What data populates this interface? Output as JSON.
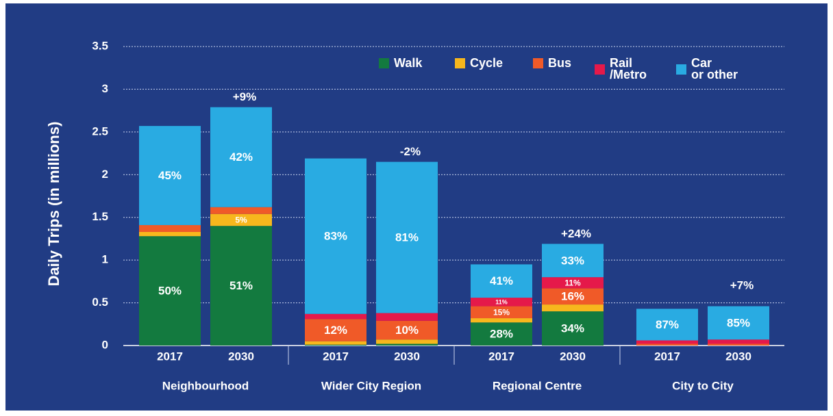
{
  "chart_data": {
    "type": "stacked_bar",
    "y_label": "Daily Trips (in millions)",
    "groups": [
      "Neighbourhood",
      "Wider City Region",
      "Regional Centre",
      "City to City"
    ],
    "categories": [
      "2017",
      "2030",
      "2017",
      "2030",
      "2017",
      "2030",
      "2017",
      "2030"
    ],
    "ylim": [
      0,
      3.5
    ],
    "yticks": [
      0,
      0.5,
      1,
      1.5,
      2,
      2.5,
      3,
      3.5
    ],
    "grid": true,
    "legend": "top-right",
    "series": [
      {
        "name": "Walk",
        "color": "#137a3f",
        "values": [
          1.28,
          1.4,
          0.01,
          0.02,
          0.27,
          0.4,
          0,
          0
        ],
        "share_labels": [
          "50%",
          "51%",
          null,
          null,
          "28%",
          "34%",
          null,
          null
        ]
      },
      {
        "name": "Cycle",
        "color": "#f7b71d",
        "values": [
          0.05,
          0.14,
          0.04,
          0.05,
          0.05,
          0.08,
          0,
          0
        ],
        "share_labels": [
          null,
          "5%",
          null,
          null,
          null,
          null,
          null,
          null
        ]
      },
      {
        "name": "Bus",
        "color": "#f05a28",
        "values": [
          0.08,
          0.08,
          0.26,
          0.22,
          0.14,
          0.19,
          0.02,
          0.02
        ],
        "share_labels": [
          null,
          null,
          "12%",
          "10%",
          "15%",
          "16%",
          null,
          null
        ]
      },
      {
        "name": "Rail\n/Metro",
        "color": "#e5194a",
        "values": [
          0,
          0,
          0.06,
          0.09,
          0.1,
          0.13,
          0.04,
          0.05
        ],
        "share_labels": [
          null,
          null,
          null,
          null,
          "11%",
          "11%",
          null,
          null
        ]
      },
      {
        "name": "Car\nor other",
        "color": "#29abe2",
        "values": [
          1.16,
          1.17,
          1.82,
          1.77,
          0.39,
          0.39,
          0.37,
          0.39
        ],
        "share_labels": [
          "45%",
          "42%",
          "83%",
          "81%",
          "41%",
          "33%",
          "87%",
          "85%"
        ]
      }
    ],
    "change_labels": [
      null,
      "+9%",
      null,
      "-2%",
      null,
      "+24%",
      null,
      "+7%"
    ]
  }
}
